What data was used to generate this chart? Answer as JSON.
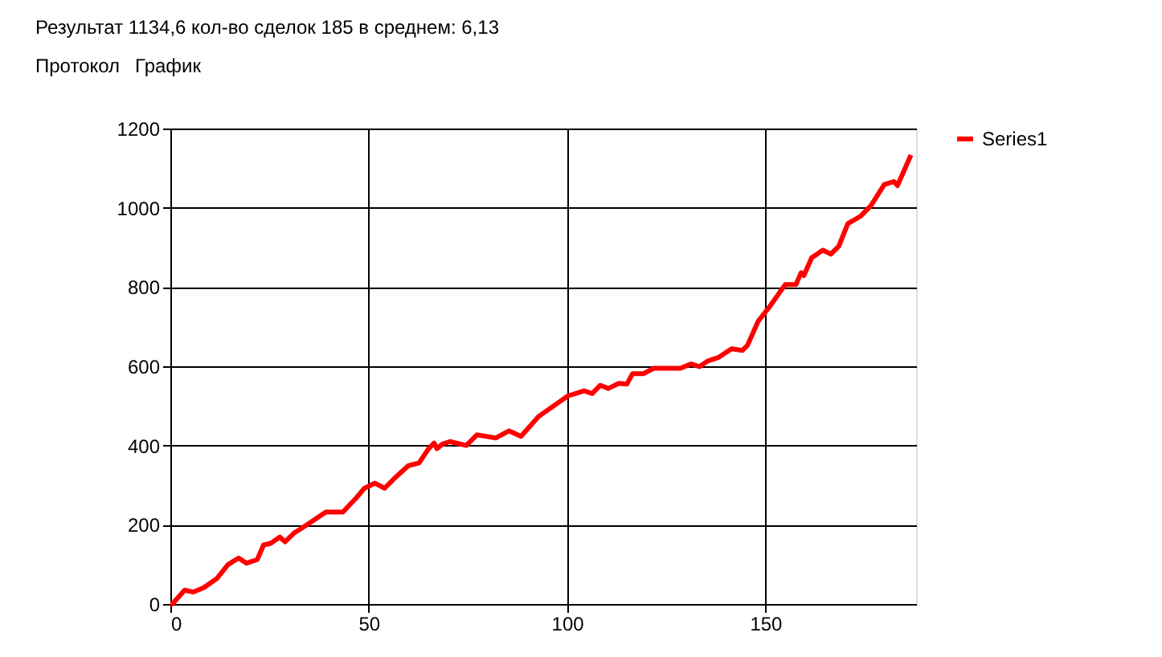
{
  "chart_data": {
    "type": "line",
    "annotations": [
      "Результат 1134,6 кол-во сделок 185 в среднем: 6,13",
      "Протокол",
      "График"
    ],
    "x": [
      0,
      0.5,
      3.6,
      5.7,
      8.4,
      11.8,
      14.5,
      17.2,
      19.2,
      21.9,
      23.5,
      25.3,
      27.6,
      28.9,
      31.3,
      33.4,
      36.8,
      39.2,
      43.5,
      46.9,
      48.9,
      51.6,
      54,
      57,
      60,
      62.7,
      65.1,
      66.5,
      67.2,
      68.5,
      70.5,
      74.6,
      77.3,
      82,
      85.4,
      88.4,
      92.8,
      98.2,
      100.2,
      104.3,
      106.3,
      108.4,
      110.4,
      113.1,
      115.1,
      116.5,
      119.2,
      121.9,
      128.6,
      131.3,
      133.4,
      135.4,
      138.1,
      141.5,
      144.2,
      145.5,
      148.2,
      150.9,
      155,
      157.7,
      159,
      159.7,
      161.7,
      164.5,
      166.5,
      168.5,
      170.8,
      173.9,
      176.6,
      180,
      182.4,
      183.3,
      186.7
    ],
    "series": [
      {
        "name": "Series1",
        "color": "#ff0000",
        "values": [
          0,
          0,
          35,
          30,
          41,
          65,
          99,
          116,
          103,
          112,
          149,
          153,
          169,
          157,
          180,
          193,
          216,
          232,
          232,
          268,
          292,
          305,
          292,
          322,
          349,
          356,
          392,
          406,
          392,
          403,
          410,
          400,
          427,
          419,
          437,
          423,
          473,
          511,
          525,
          538,
          531,
          552,
          544,
          557,
          555,
          581,
          581,
          595,
          595,
          606,
          599,
          613,
          622,
          644,
          640,
          653,
          714,
          748,
          806,
          806,
          836,
          829,
          874,
          893,
          883,
          903,
          960,
          978,
          1005,
          1059,
          1066,
          1056,
          1133
        ]
      }
    ],
    "xlim": [
      0,
      188
    ],
    "xticks": [
      0,
      50,
      100,
      150
    ],
    "ylim": [
      0,
      1200
    ],
    "yticks": [
      0,
      200,
      400,
      600,
      800,
      1000,
      1200
    ],
    "grid": true,
    "legend": "top right",
    "marker": "none",
    "line_style": "solid"
  }
}
